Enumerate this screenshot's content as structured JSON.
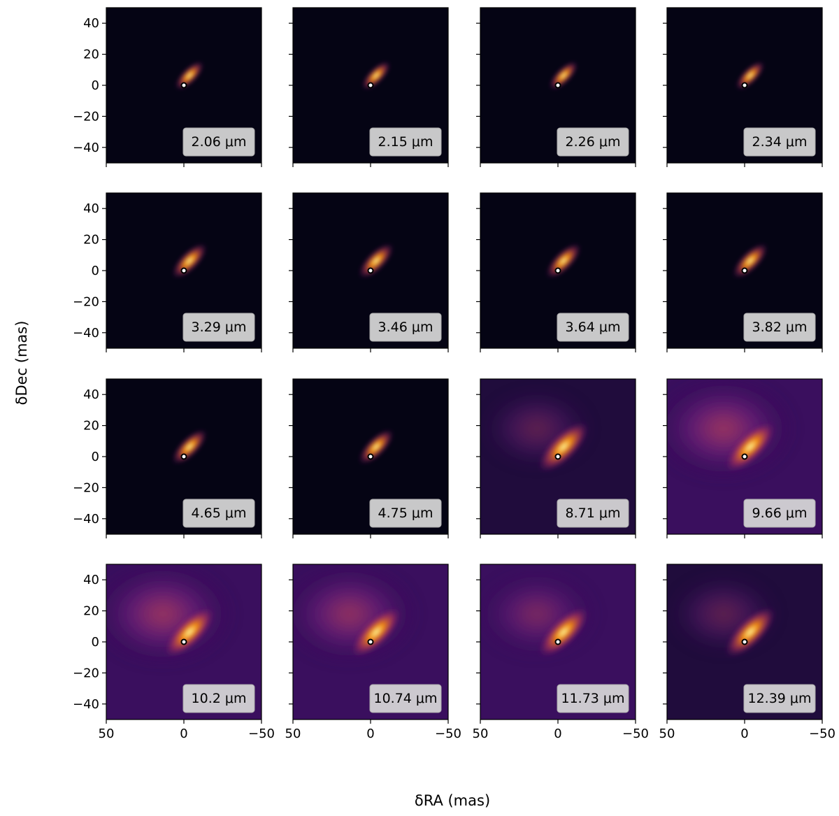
{
  "chart_data": {
    "type": "heatmap",
    "layout": {
      "rows": 4,
      "cols": 4,
      "shared_x": true,
      "shared_y": true
    },
    "xlabel": "δRA (mas)",
    "ylabel": "δDec (mas)",
    "xlim": [
      50,
      -50
    ],
    "ylim": [
      -50,
      50
    ],
    "xticks": [
      50,
      0,
      -50
    ],
    "xtick_labels": [
      "50",
      "0",
      "−50"
    ],
    "yticks": [
      40,
      20,
      0,
      -20,
      -40
    ],
    "ytick_labels": [
      "40",
      "20",
      "0",
      "−20",
      "−40"
    ],
    "colormap": "inferno",
    "marker": {
      "x": 0,
      "y": 0,
      "shape": "circle",
      "fill": "#ffffff",
      "edge": "#000000"
    },
    "label_box": {
      "placement": "bottom-right",
      "background": "#d9d9d9"
    },
    "panels": [
      {
        "wavelength": "2.06 μm",
        "extended_level": 0.0
      },
      {
        "wavelength": "2.15 μm",
        "extended_level": 0.0
      },
      {
        "wavelength": "2.26 μm",
        "extended_level": 0.0
      },
      {
        "wavelength": "2.34 μm",
        "extended_level": 0.0
      },
      {
        "wavelength": "3.29 μm",
        "extended_level": 0.03
      },
      {
        "wavelength": "3.46 μm",
        "extended_level": 0.03
      },
      {
        "wavelength": "3.64 μm",
        "extended_level": 0.03
      },
      {
        "wavelength": "3.82 μm",
        "extended_level": 0.03
      },
      {
        "wavelength": "4.65 μm",
        "extended_level": 0.05
      },
      {
        "wavelength": "4.75 μm",
        "extended_level": 0.05
      },
      {
        "wavelength": "8.71 μm",
        "extended_level": 0.25
      },
      {
        "wavelength": "9.66 μm",
        "extended_level": 0.45
      },
      {
        "wavelength": "10.2 μm",
        "extended_level": 0.45
      },
      {
        "wavelength": "10.74 μm",
        "extended_level": 0.42
      },
      {
        "wavelength": "11.73 μm",
        "extended_level": 0.32
      },
      {
        "wavelength": "12.39 μm",
        "extended_level": 0.25
      }
    ]
  }
}
